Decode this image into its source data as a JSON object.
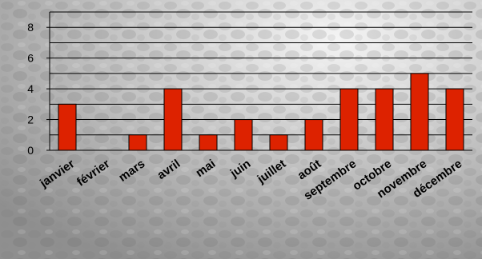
{
  "chart_data": {
    "type": "bar",
    "categories": [
      "janvier",
      "février",
      "mars",
      "avril",
      "mai",
      "juin",
      "juillet",
      "août",
      "septembre",
      "octobre",
      "novembre",
      "décembre"
    ],
    "values": [
      3,
      0,
      1,
      4,
      1,
      2,
      1,
      2,
      4,
      4,
      5,
      4
    ],
    "ylim": [
      0,
      9
    ],
    "yticks": [
      0,
      2,
      4,
      6,
      8
    ],
    "grid": "horizontal",
    "legend": "none",
    "bar_color": "#dd2200",
    "bar_stroke": "#000000",
    "background": "grey stone texture"
  }
}
